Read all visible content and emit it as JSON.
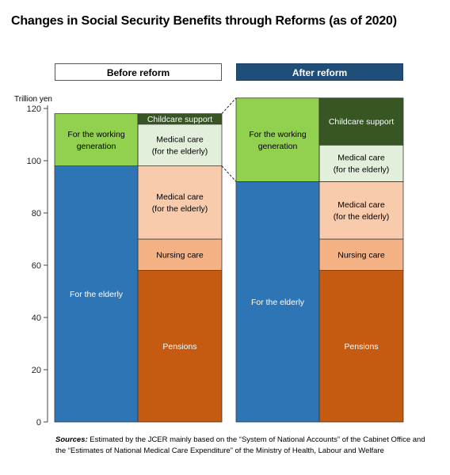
{
  "chart_data": {
    "type": "bar",
    "stacked": true,
    "title": "Changes in Social Security Benefits through Reforms (as of 2020)",
    "ylabel": "Trillion yen",
    "ylim": [
      0,
      120
    ],
    "yticks": [
      0,
      20,
      40,
      60,
      80,
      100,
      120
    ],
    "categories": [
      "Before reform",
      "After reform"
    ],
    "groups": [
      {
        "name": "Before reform",
        "left_column": [
          {
            "label": "For the elderly",
            "from": 0,
            "to": 98,
            "color": "#2e75b6"
          },
          {
            "label": "For the working generation",
            "from": 98,
            "to": 118,
            "color": "#92d050"
          }
        ],
        "right_column": [
          {
            "label": "Pensions",
            "from": 0,
            "to": 58,
            "color": "#c55a11"
          },
          {
            "label": "Nursing care",
            "from": 58,
            "to": 70,
            "color": "#f4b183"
          },
          {
            "label": "Medical care (for the elderly)",
            "from": 70,
            "to": 98,
            "color": "#f8cbad"
          },
          {
            "label": "Medical care (for the elderly)",
            "from": 98,
            "to": 114,
            "color": "#e2efda"
          },
          {
            "label": "Childcare support",
            "from": 114,
            "to": 118,
            "color": "#375623"
          }
        ]
      },
      {
        "name": "After reform",
        "left_column": [
          {
            "label": "For the elderly",
            "from": 0,
            "to": 92,
            "color": "#2e75b6"
          },
          {
            "label": "For the working generation",
            "from": 92,
            "to": 124,
            "color": "#92d050"
          }
        ],
        "right_column": [
          {
            "label": "Pensions",
            "from": 0,
            "to": 58,
            "color": "#c55a11"
          },
          {
            "label": "Nursing care",
            "from": 58,
            "to": 70,
            "color": "#f4b183"
          },
          {
            "label": "Medical care (for the elderly)",
            "from": 70,
            "to": 92,
            "color": "#f8cbad"
          },
          {
            "label": "Medical care (for the elderly)",
            "from": 92,
            "to": 106,
            "color": "#e2efda"
          },
          {
            "label": "Childcare support",
            "from": 106,
            "to": 124,
            "color": "#375623"
          }
        ]
      }
    ]
  },
  "labels": {
    "working_generation": [
      "For the working",
      "generation"
    ],
    "elderly": [
      "For the elderly"
    ],
    "medical_care": [
      "Medical care",
      "(for the elderly)"
    ],
    "nursing_care": [
      "Nursing care"
    ],
    "pensions": [
      "Pensions"
    ],
    "childcare": [
      "Childcare support"
    ]
  },
  "sources": {
    "label": "Sources:",
    "text": "Estimated by the JCER mainly based on the “System of National Accounts” of the Cabinet Office and the “Estimates of National Medical Care Expenditure” of the Ministry of Health, Labour and Welfare"
  }
}
